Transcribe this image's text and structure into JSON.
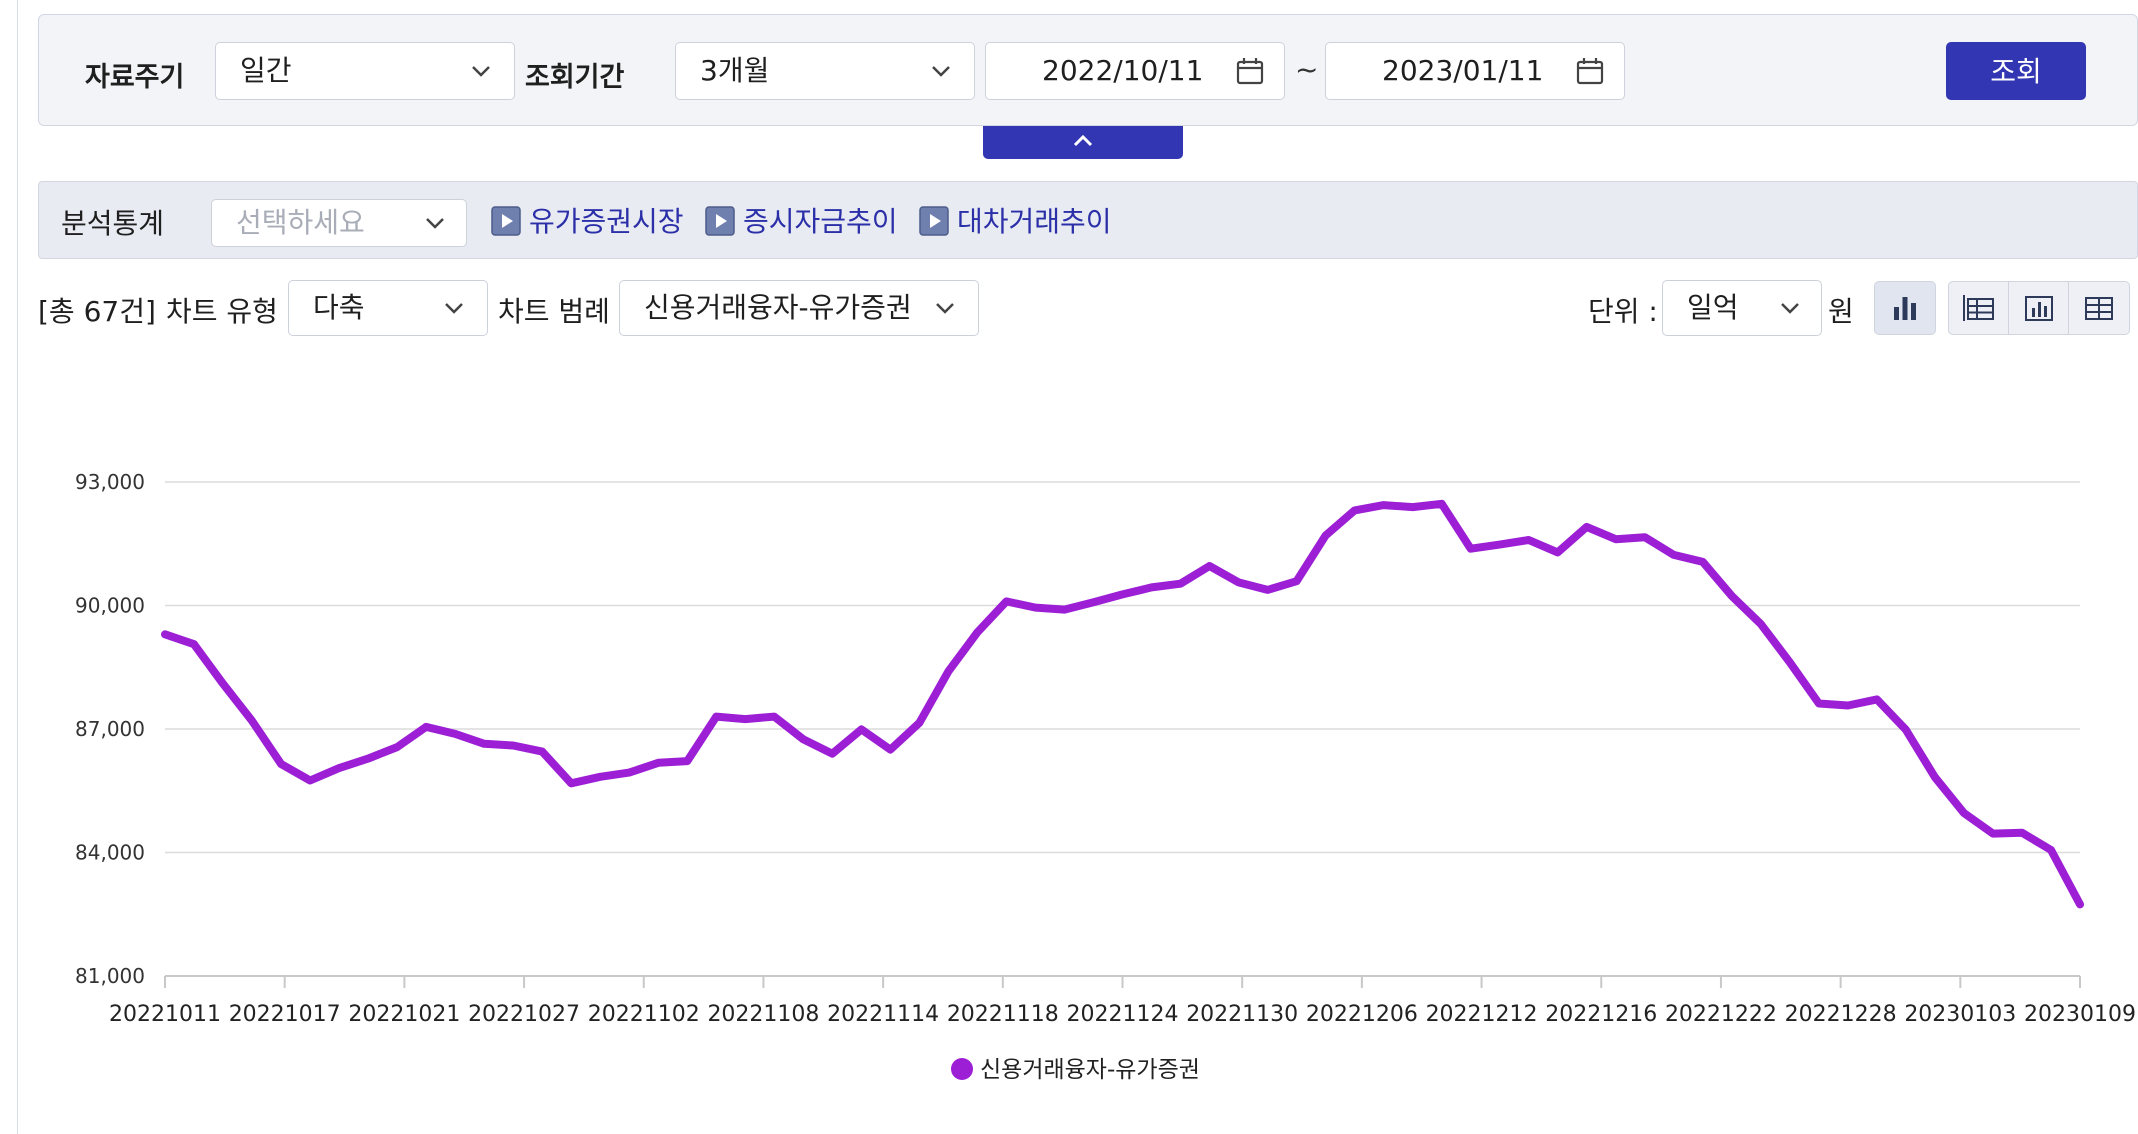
{
  "search": {
    "period_label": "자료주기",
    "period_value": "일간",
    "range_label": "조회기간",
    "range_value": "3개월",
    "start_date": "2022/10/11",
    "tilde": "~",
    "end_date": "2023/01/11",
    "query_button": "조회"
  },
  "analysis": {
    "label": "분석통계",
    "placeholder": "선택하세요",
    "links": [
      "유가증권시장",
      "증시자금추이",
      "대차거래추이"
    ]
  },
  "controls": {
    "total": "[총 67건]",
    "chart_type_label": "차트 유형",
    "chart_type_value": "다축",
    "legend_label": "차트 범례",
    "legend_value": "신용거래융자-유가증권",
    "unit_label": "단위 :",
    "unit_value": "일억",
    "unit_suffix": "원"
  },
  "colors": {
    "accent": "#3236b3",
    "series": "#9c1fd6"
  },
  "icons": [
    "chevron-down-icon",
    "calendar-icon",
    "chevron-up-icon",
    "play-icon",
    "bar-chart-icon",
    "table-chart-icon",
    "chart-icon",
    "grid-icon"
  ],
  "chart_data": {
    "type": "line",
    "ylim": [
      81000,
      93000
    ],
    "yticks": [
      "81,000",
      "84,000",
      "87,000",
      "90,000",
      "93,000"
    ],
    "xticks": [
      "20221011",
      "20221017",
      "20221021",
      "20221027",
      "20221102",
      "20221108",
      "20221114",
      "20221118",
      "20221124",
      "20221130",
      "20221206",
      "20221212",
      "20221216",
      "20221222",
      "20221228",
      "20230103",
      "20230109"
    ],
    "series": [
      {
        "name": "신용거래융자-유가증권",
        "values": [
          89300,
          89060,
          88100,
          87200,
          86150,
          85750,
          86050,
          86280,
          86560,
          87050,
          86880,
          86640,
          86600,
          86450,
          85680,
          85840,
          85940,
          86180,
          86220,
          87300,
          87240,
          87300,
          86750,
          86400,
          86990,
          86500,
          87150,
          88400,
          89350,
          90100,
          89950,
          89900,
          90080,
          90270,
          90440,
          90530,
          90960,
          90560,
          90380,
          90590,
          91700,
          92310,
          92440,
          92390,
          92470,
          91380,
          91480,
          91590,
          91290,
          91910,
          91610,
          91660,
          91230,
          91060,
          90230,
          89550,
          88620,
          87620,
          87570,
          87720,
          86980,
          85830,
          84960,
          84460,
          84480,
          84060,
          82740
        ]
      }
    ]
  }
}
